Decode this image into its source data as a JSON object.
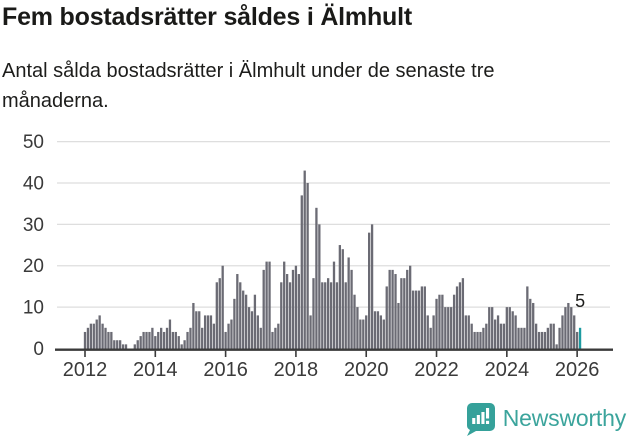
{
  "header": {
    "title": "Fem bostadsrätter såldes i Älmhult",
    "subtitle": "Antal sålda bostadsrätter i Älmhult under de senaste tre månaderna."
  },
  "chart_data": {
    "type": "bar",
    "title": "Fem bostadsrätter såldes i Älmhult",
    "subtitle": "Antal sålda bostadsrätter i Älmhult under de senaste tre månaderna.",
    "frequency": "monthly",
    "x_start": "2012-01",
    "x_end": "2026-02",
    "ylim": [
      0,
      50
    ],
    "yticks": [
      0,
      10,
      20,
      30,
      40,
      50
    ],
    "xticks": [
      2012,
      2014,
      2016,
      2018,
      2020,
      2022,
      2024,
      2026
    ],
    "grid": "horizontal",
    "legend": "none",
    "bar_color": "#6b6b74",
    "highlight_color": "#1d9ba1",
    "grid_color": "#dedede",
    "axis_color": "#3a3a3a",
    "annotation": {
      "text": "5",
      "applies_to": "last-bar"
    },
    "values": [
      4,
      5,
      6,
      6,
      7,
      8,
      6,
      5,
      4,
      4,
      2,
      2,
      2,
      1,
      1,
      0,
      0,
      1,
      2,
      3,
      4,
      4,
      4,
      5,
      3,
      4,
      5,
      4,
      5,
      7,
      4,
      4,
      3,
      1,
      2,
      4,
      5,
      11,
      9,
      9,
      5,
      8,
      8,
      8,
      6,
      16,
      17,
      20,
      4,
      6,
      7,
      12,
      18,
      16,
      14,
      13,
      10,
      9,
      13,
      8,
      5,
      19,
      21,
      21,
      4,
      5,
      6,
      16,
      21,
      18,
      16,
      19,
      20,
      18,
      37,
      43,
      40,
      8,
      17,
      34,
      30,
      16,
      16,
      17,
      16,
      21,
      16,
      25,
      24,
      16,
      22,
      19,
      13,
      10,
      7,
      7,
      8,
      28,
      30,
      9,
      9,
      8,
      7,
      15,
      19,
      19,
      18,
      11,
      17,
      17,
      19,
      20,
      14,
      14,
      14,
      15,
      15,
      8,
      5,
      8,
      12,
      13,
      13,
      10,
      10,
      10,
      13,
      15,
      16,
      17,
      8,
      8,
      6,
      4,
      4,
      4,
      5,
      6,
      10,
      10,
      7,
      8,
      6,
      6,
      10,
      10,
      9,
      8,
      5,
      5,
      5,
      15,
      12,
      11,
      6,
      4,
      4,
      4,
      5,
      6,
      6,
      1,
      5,
      8,
      10,
      11,
      10,
      8,
      4,
      5
    ]
  },
  "footer": {
    "brand": "Newsworthy",
    "brand_color": "#3ba49c"
  }
}
